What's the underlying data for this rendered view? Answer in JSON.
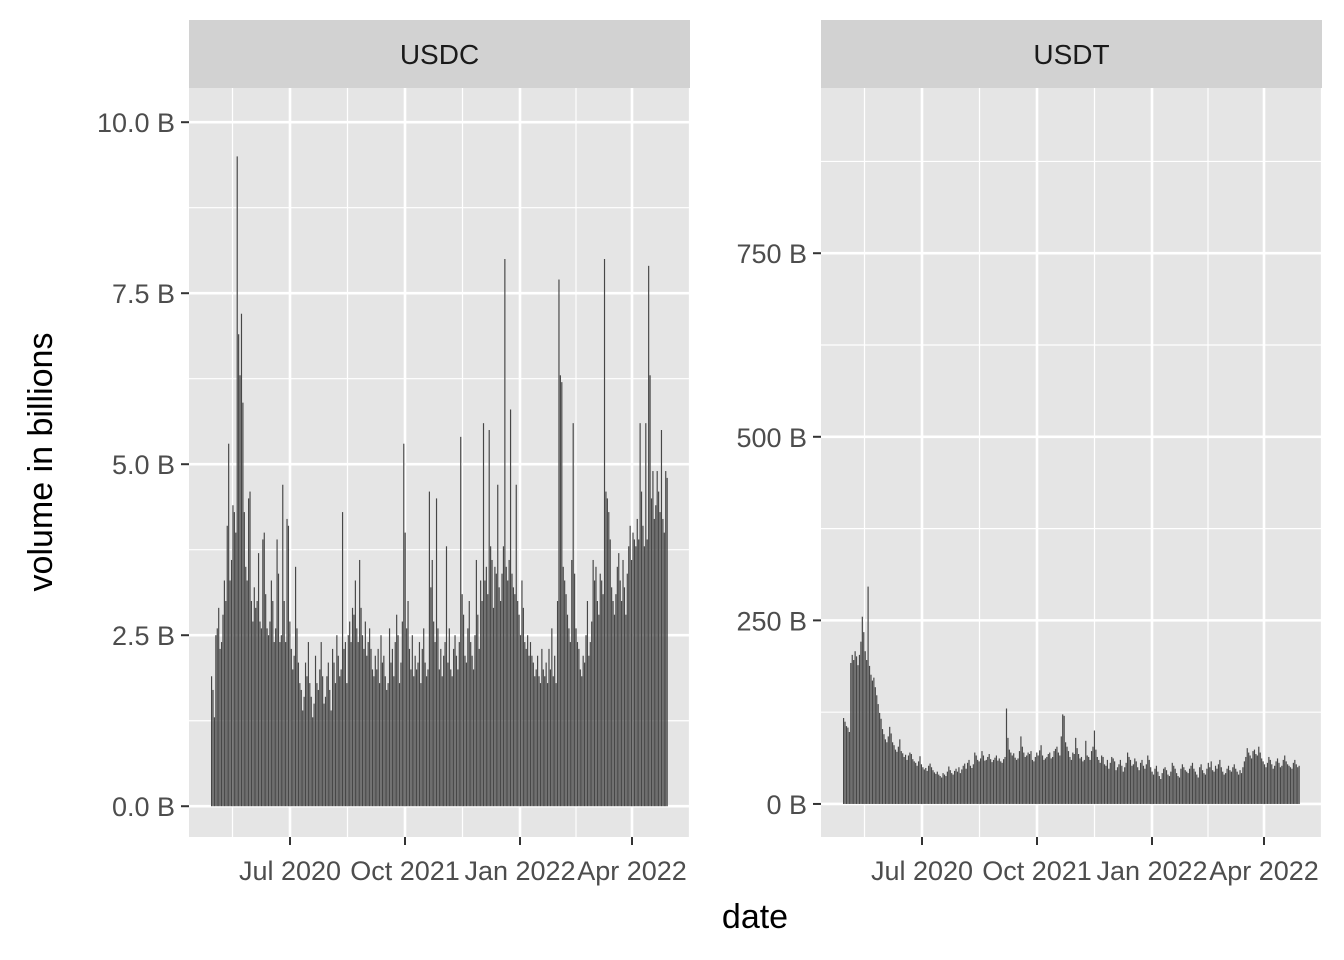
{
  "chart_data": {
    "type": "bar",
    "xlabel": "date",
    "ylabel": "volume in billions",
    "x_tick_labels": [
      "Jul 2020",
      "Oct 2021",
      "Jan 2022",
      "Apr 2022"
    ],
    "colors": {
      "bar": "#474747",
      "panel": "#e5e5e5",
      "strip": "#d2d2d2",
      "grid": "#ffffff"
    },
    "grid": true,
    "panels": [
      {
        "label": "USDC",
        "ylim": [
          -0.45,
          10.5
        ],
        "y_ticks": [
          0,
          2.5,
          5,
          7.5,
          10
        ],
        "y_tick_labels": [
          "0.0 B",
          "2.5 B",
          "5.0 B",
          "7.5 B",
          "10.0 B"
        ],
        "values": [
          1.9,
          1.7,
          1.3,
          2.5,
          2.6,
          2.9,
          2.3,
          2.4,
          2.8,
          3.3,
          3.0,
          4.1,
          5.3,
          3.3,
          3.6,
          4.4,
          4.3,
          4.0,
          9.5,
          6.9,
          6.3,
          7.2,
          5.9,
          4.3,
          3.5,
          3.3,
          4.5,
          4.6,
          3.0,
          2.7,
          3.2,
          2.9,
          3.0,
          3.7,
          2.7,
          2.6,
          3.9,
          4.0,
          3.1,
          2.6,
          2.5,
          2.7,
          3.3,
          3.0,
          2.4,
          2.6,
          3.9,
          3.4,
          2.4,
          2.5,
          4.7,
          3.0,
          2.4,
          4.2,
          4.1,
          2.7,
          2.3,
          2.0,
          2.2,
          3.5,
          2.6,
          2.1,
          1.8,
          1.7,
          1.4,
          1.6,
          2.1,
          1.9,
          2.4,
          1.8,
          1.6,
          1.3,
          1.5,
          2.2,
          1.8,
          1.7,
          2.0,
          2.4,
          1.9,
          1.5,
          1.6,
          1.9,
          2.1,
          1.7,
          1.4,
          2.3,
          2.1,
          1.8,
          2.5,
          2.2,
          1.9,
          2.0,
          4.3,
          2.3,
          2.4,
          1.8,
          2.5,
          2.7,
          2.4,
          2.9,
          2.8,
          3.3,
          2.6,
          2.4,
          3.6,
          2.9,
          2.5,
          2.3,
          2.7,
          2.2,
          2.4,
          2.6,
          2.3,
          2.0,
          1.9,
          2.2,
          2.0,
          2.3,
          1.8,
          2.5,
          2.1,
          2.2,
          1.9,
          1.7,
          1.8,
          2.6,
          2.1,
          2.3,
          1.9,
          2.4,
          2.8,
          2.5,
          1.8,
          2.1,
          2.7,
          5.3,
          4.0,
          2.6,
          3.0,
          2.3,
          2.0,
          2.5,
          1.9,
          2.2,
          2.0,
          2.1,
          2.4,
          1.8,
          2.3,
          2.6,
          2.1,
          1.9,
          2.0,
          4.6,
          3.2,
          3.6,
          2.7,
          2.4,
          4.5,
          2.6,
          2.0,
          2.3,
          1.9,
          2.2,
          2.4,
          3.8,
          2.1,
          2.6,
          2.0,
          1.9,
          2.3,
          2.5,
          2.2,
          2.0,
          2.4,
          5.4,
          3.1,
          2.8,
          2.2,
          2.1,
          2.6,
          3.0,
          2.4,
          2.2,
          2.0,
          2.5,
          3.6,
          2.8,
          2.3,
          3.3,
          3.0,
          5.6,
          3.3,
          3.5,
          3.1,
          5.5,
          3.8,
          3.6,
          2.9,
          3.5,
          3.4,
          4.7,
          3.2,
          3.0,
          3.4,
          3.8,
          8.0,
          3.5,
          3.3,
          3.6,
          5.8,
          3.4,
          3.2,
          3.1,
          4.7,
          3.0,
          2.8,
          2.5,
          3.3,
          2.9,
          2.4,
          2.3,
          2.5,
          2.2,
          2.4,
          2.2,
          2.1,
          1.9,
          2.0,
          2.2,
          1.9,
          1.8,
          2.3,
          2.0,
          1.9,
          2.1,
          1.8,
          2.3,
          2.0,
          2.6,
          1.9,
          2.2,
          1.8,
          3.0,
          7.7,
          6.3,
          6.2,
          3.5,
          3.3,
          3.1,
          2.8,
          2.6,
          2.4,
          3.6,
          5.6,
          3.4,
          2.6,
          2.4,
          2.3,
          2.0,
          1.9,
          2.2,
          2.1,
          2.5,
          3.0,
          2.2,
          2.4,
          2.7,
          3.6,
          3.3,
          3.5,
          3.0,
          2.8,
          3.4,
          3.3,
          3.1,
          8.0,
          4.6,
          4.5,
          4.3,
          3.9,
          3.2,
          3.0,
          2.8,
          3.1,
          3.5,
          3.7,
          3.3,
          3.0,
          3.6,
          3.2,
          2.8,
          3.4,
          3.8,
          4.1,
          3.6,
          4.0,
          3.9,
          3.8,
          4.2,
          3.9,
          5.6,
          4.6,
          4.1,
          3.8,
          5.6,
          3.9,
          7.9,
          6.3,
          4.5,
          4.9,
          4.2,
          4.4,
          4.9,
          4.6,
          4.3,
          5.5,
          4.2,
          4.0,
          4.9,
          4.8
        ]
      },
      {
        "label": "USDT",
        "ylim": [
          -45,
          975
        ],
        "y_ticks": [
          0,
          250,
          500,
          750
        ],
        "y_tick_labels": [
          "0 B",
          "250 B",
          "500 B",
          "750 B"
        ],
        "values": [
          117,
          112,
          106,
          104,
          98,
          192,
          203,
          196,
          208,
          201,
          189,
          203,
          221,
          255,
          234,
          208,
          196,
          296,
          188,
          176,
          168,
          172,
          159,
          148,
          136,
          124,
          116,
          102,
          95,
          88,
          84,
          92,
          105,
          96,
          84,
          80,
          74,
          71,
          78,
          88,
          72,
          69,
          64,
          67,
          60,
          66,
          70,
          68,
          61,
          58,
          56,
          52,
          58,
          65,
          54,
          50,
          47,
          49,
          45,
          52,
          55,
          50,
          46,
          43,
          41,
          44,
          40,
          38,
          36,
          42,
          40,
          38,
          44,
          51,
          46,
          42,
          40,
          45,
          48,
          44,
          50,
          42,
          47,
          52,
          55,
          48,
          56,
          60,
          52,
          49,
          54,
          70,
          66,
          60,
          58,
          62,
          72,
          66,
          59,
          60,
          64,
          68,
          61,
          57,
          60,
          63,
          66,
          59,
          62,
          58,
          56,
          61,
          64,
          130,
          90,
          74,
          70,
          66,
          69,
          63,
          60,
          62,
          72,
          92,
          78,
          70,
          64,
          66,
          70,
          68,
          72,
          60,
          58,
          64,
          70,
          66,
          73,
          80,
          66,
          60,
          62,
          64,
          68,
          70,
          62,
          64,
          72,
          75,
          78,
          70,
          66,
          92,
          122,
          120,
          84,
          78,
          72,
          64,
          60,
          70,
          68,
          90,
          76,
          68,
          62,
          64,
          58,
          60,
          86,
          66,
          64,
          60,
          72,
          78,
          100,
          74,
          64,
          60,
          56,
          66,
          64,
          54,
          52,
          60,
          48,
          56,
          64,
          62,
          58,
          46,
          50,
          54,
          60,
          52,
          44,
          50,
          56,
          70,
          64,
          60,
          52,
          54,
          62,
          58,
          50,
          46,
          56,
          60,
          52,
          48,
          54,
          66,
          60,
          50,
          44,
          40,
          48,
          52,
          44,
          38,
          34,
          42,
          48,
          50,
          46,
          40,
          38,
          44,
          56,
          52,
          48,
          42,
          38,
          36,
          48,
          54,
          50,
          46,
          44,
          42,
          48,
          52,
          56,
          48,
          44,
          40,
          36,
          50,
          54,
          46,
          42,
          40,
          48,
          56,
          50,
          58,
          46,
          44,
          52,
          48,
          54,
          60,
          50,
          44,
          40,
          42,
          48,
          52,
          46,
          44,
          50,
          54,
          48,
          44,
          40,
          46,
          42,
          50,
          58,
          64,
          76,
          70,
          66,
          62,
          72,
          74,
          68,
          66,
          78,
          70,
          62,
          58,
          54,
          50,
          56,
          64,
          60,
          54,
          48,
          52,
          58,
          62,
          56,
          50,
          52,
          60,
          66,
          58,
          54,
          52,
          50,
          48,
          56,
          60,
          54,
          50,
          52
        ]
      }
    ]
  }
}
